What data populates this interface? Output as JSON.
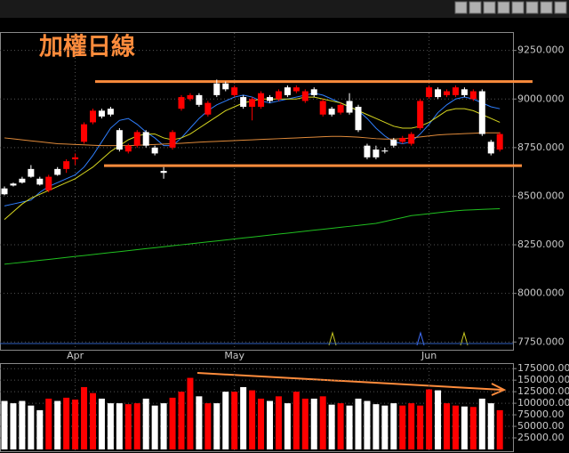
{
  "chart_data": [
    {
      "type": "candlestick",
      "title": "加權日線",
      "categories": [
        null,
        null,
        null,
        null,
        null,
        null,
        null,
        null,
        "Apr",
        null,
        null,
        null,
        null,
        null,
        null,
        null,
        null,
        null,
        null,
        null,
        null,
        null,
        null,
        null,
        null,
        null,
        "May",
        null,
        null,
        null,
        null,
        null,
        null,
        null,
        null,
        null,
        null,
        null,
        null,
        null,
        null,
        null,
        null,
        null,
        null,
        null,
        null,
        null,
        "Jun",
        null,
        null,
        null,
        null,
        null,
        null,
        null,
        null
      ],
      "open": [
        8540,
        8565,
        8590,
        8640,
        8590,
        8530,
        8640,
        8640,
        8690,
        8780,
        8880,
        8940,
        8950,
        8840,
        8730,
        8760,
        8830,
        8750,
        8630,
        8750,
        8950,
        9000,
        9020,
        8920,
        9080,
        9080,
        9020,
        9010,
        8960,
        8960,
        9010,
        9000,
        9060,
        9040,
        8990,
        9050,
        8920,
        8950,
        8930,
        8990,
        8960,
        8760,
        8740,
        8735,
        8790,
        8780,
        8770,
        8850,
        9010,
        9050,
        9020,
        9020,
        9050,
        9000,
        9040,
        8780,
        8740
      ],
      "high": [
        8550,
        8570,
        8600,
        8660,
        8600,
        8610,
        8650,
        8690,
        8720,
        8880,
        8950,
        8950,
        8960,
        8850,
        8770,
        8840,
        8840,
        8760,
        8650,
        8840,
        9020,
        9030,
        9030,
        8990,
        9100,
        9090,
        9070,
        9020,
        9010,
        9040,
        9020,
        9050,
        9070,
        9070,
        9050,
        9060,
        9000,
        8960,
        8980,
        9030,
        8970,
        8770,
        8760,
        8750,
        8800,
        8810,
        8830,
        9000,
        9070,
        9060,
        9050,
        9070,
        9060,
        9050,
        9050,
        8790,
        8830
      ],
      "low": [
        8505,
        8550,
        8565,
        8595,
        8555,
        8520,
        8605,
        8620,
        8660,
        8770,
        8870,
        8900,
        8910,
        8730,
        8720,
        8750,
        8750,
        8710,
        8590,
        8740,
        8940,
        8990,
        8960,
        8910,
        9010,
        9040,
        9010,
        8950,
        8890,
        8950,
        8980,
        8990,
        9010,
        9030,
        8980,
        9010,
        8910,
        8910,
        8920,
        8920,
        8830,
        8690,
        8690,
        8720,
        8750,
        8770,
        8760,
        8840,
        9000,
        9000,
        9010,
        9010,
        9010,
        8990,
        8810,
        8710,
        8730
      ],
      "close": [
        8510,
        8555,
        8570,
        8600,
        8560,
        8600,
        8610,
        8680,
        8700,
        8870,
        8940,
        8910,
        8920,
        8740,
        8760,
        8830,
        8760,
        8720,
        8620,
        8830,
        9010,
        9020,
        8970,
        8980,
        9020,
        9050,
        9060,
        8960,
        9000,
        9030,
        8990,
        9040,
        9020,
        9060,
        9040,
        9020,
        8990,
        8920,
        8970,
        8930,
        8840,
        8700,
        8700,
        8730,
        8760,
        8800,
        8820,
        8990,
        9060,
        9010,
        9040,
        9060,
        9020,
        9040,
        8820,
        8720,
        8820
      ],
      "up_color": "#ff0000",
      "down_color": "#ffffff",
      "series": [
        {
          "color": "#2f7fff",
          "values": [
            8450,
            8460,
            8470,
            8480,
            8520,
            8550,
            8570,
            8590,
            8610,
            8650,
            8710,
            8780,
            8850,
            8890,
            8900,
            8870,
            8830,
            8800,
            8760,
            8760,
            8800,
            8850,
            8900,
            8940,
            8970,
            8990,
            9010,
            9020,
            9010,
            8990,
            8980,
            8990,
            9000,
            9010,
            9020,
            9030,
            9020,
            9000,
            8980,
            8960,
            8940,
            8900,
            8850,
            8810,
            8780,
            8770,
            8780,
            8820,
            8870,
            8930,
            8970,
            9000,
            9010,
            9000,
            8980,
            8960,
            8950
          ]
        },
        {
          "color": "#d8d820",
          "values": [
            8380,
            8420,
            8460,
            8490,
            8510,
            8530,
            8550,
            8570,
            8590,
            8620,
            8650,
            8690,
            8730,
            8760,
            8790,
            8810,
            8820,
            8820,
            8800,
            8790,
            8800,
            8820,
            8850,
            8880,
            8910,
            8940,
            8960,
            8980,
            8990,
            9000,
            9000,
            9000,
            9000,
            9000,
            9010,
            9010,
            9000,
            8990,
            8980,
            8960,
            8940,
            8920,
            8900,
            8880,
            8860,
            8850,
            8850,
            8860,
            8880,
            8910,
            8940,
            8950,
            8950,
            8940,
            8920,
            8900,
            8880
          ]
        },
        {
          "color": "#e08a3a",
          "values": [
            8800,
            8795,
            8790,
            8785,
            8780,
            8775,
            8770,
            8768,
            8766,
            8764,
            8762,
            8760,
            8760,
            8760,
            8760,
            8762,
            8764,
            8766,
            8768,
            8770,
            8772,
            8775,
            8778,
            8780,
            8782,
            8784,
            8786,
            8788,
            8790,
            8792,
            8794,
            8796,
            8798,
            8800,
            8802,
            8804,
            8806,
            8808,
            8808,
            8806,
            8804,
            8800,
            8796,
            8794,
            8794,
            8796,
            8800,
            8805,
            8810,
            8815,
            8818,
            8820,
            8822,
            8824,
            8826,
            8826,
            8826
          ]
        },
        {
          "color": "#20c020",
          "values": [
            8150,
            8155,
            8160,
            8165,
            8170,
            8175,
            8180,
            8185,
            8190,
            8195,
            8200,
            8205,
            8210,
            8215,
            8220,
            8225,
            8230,
            8235,
            8240,
            8245,
            8250,
            8255,
            8260,
            8265,
            8270,
            8275,
            8280,
            8285,
            8290,
            8295,
            8300,
            8305,
            8310,
            8315,
            8320,
            8325,
            8330,
            8335,
            8340,
            8345,
            8350,
            8355,
            8360,
            8370,
            8380,
            8390,
            8400,
            8405,
            8410,
            8415,
            8420,
            8425,
            8428,
            8430,
            8432,
            8434,
            8436
          ]
        }
      ],
      "hlines": [
        {
          "value": 9090,
          "color": "#ff8c3c"
        },
        {
          "value": 8657,
          "color": "#ff8c3c"
        }
      ],
      "ylim": [
        7710,
        9340
      ],
      "yticks": [
        {
          "value": 7750,
          "label": "7750.000"
        },
        {
          "value": 8000,
          "label": "8000.000"
        },
        {
          "value": 8250,
          "label": "8250.000"
        },
        {
          "value": 8500,
          "label": "8500.000"
        },
        {
          "value": 8750,
          "label": "8750.000"
        },
        {
          "value": 9000,
          "label": "9000.000"
        },
        {
          "value": 9250,
          "label": "9250.000"
        }
      ],
      "grid": true
    },
    {
      "type": "bar",
      "values": [
        105000,
        100000,
        105000,
        95000,
        85000,
        110000,
        105000,
        112000,
        108000,
        135000,
        122000,
        110000,
        100000,
        100000,
        98000,
        100000,
        110000,
        95000,
        100000,
        112000,
        125000,
        155000,
        115000,
        100000,
        100000,
        125000,
        125000,
        135000,
        128000,
        110000,
        105000,
        115000,
        100000,
        125000,
        110000,
        110000,
        115000,
        97000,
        100000,
        95000,
        110000,
        105000,
        98000,
        95000,
        100000,
        95000,
        100000,
        95000,
        130000,
        128000,
        100000,
        95000,
        93000,
        92000,
        110000,
        100000,
        85000
      ],
      "ylim": [
        0,
        185000
      ],
      "yticks": [
        {
          "value": 25000,
          "label": "25000.00"
        },
        {
          "value": 50000,
          "label": "50000.00"
        },
        {
          "value": 75000,
          "label": "75000.00"
        },
        {
          "value": 100000,
          "label": "100000.00"
        },
        {
          "value": 125000,
          "label": "125000.00"
        },
        {
          "value": 150000,
          "label": "150000.00"
        },
        {
          "value": 175000,
          "label": "175000.00"
        }
      ],
      "grid": true
    }
  ]
}
